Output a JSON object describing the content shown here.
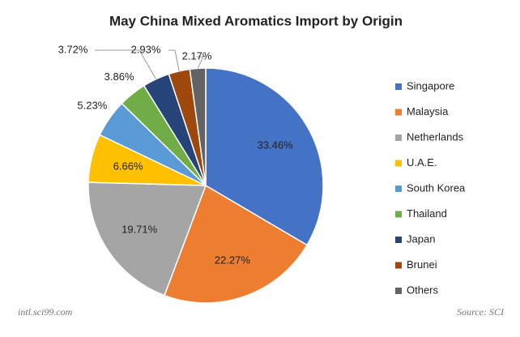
{
  "chart_data": {
    "type": "pie",
    "title": "May China Mixed Aromatics Import by Origin",
    "categories": [
      "Singapore",
      "Malaysia",
      "Netherlands",
      "U.A.E.",
      "South Korea",
      "Thailand",
      "Japan",
      "Brunei",
      "Others"
    ],
    "values": [
      33.46,
      22.27,
      19.71,
      6.66,
      5.23,
      3.86,
      3.72,
      2.93,
      2.17
    ],
    "value_labels": [
      "33.46%",
      "22.27%",
      "19.71%",
      "6.66%",
      "5.23%",
      "3.86%",
      "3.72%",
      "2.93%",
      "2.17%"
    ],
    "colors": [
      "#4472c4",
      "#ed7d31",
      "#a5a5a5",
      "#ffc000",
      "#5b9bd5",
      "#70ad47",
      "#264478",
      "#9e480e",
      "#636363"
    ],
    "legend": "right",
    "footer_left": "intl.sci99.com",
    "footer_right": "Source: SCI"
  }
}
